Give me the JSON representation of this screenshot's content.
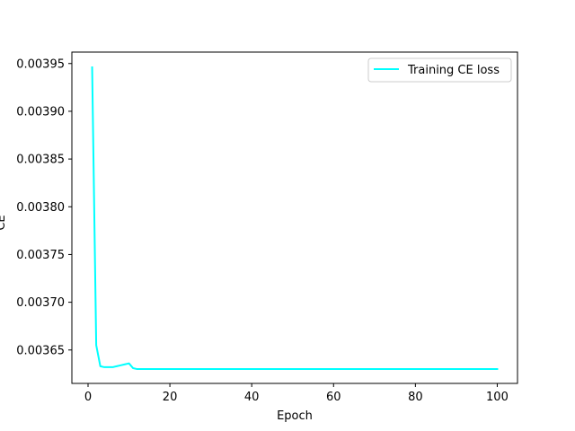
{
  "chart_data": {
    "type": "line",
    "title": "",
    "xlabel": "Epoch",
    "ylabel": "CE",
    "xlim": [
      -3.95,
      104.95
    ],
    "ylim": [
      0.003615,
      0.003962
    ],
    "xticks": [
      0,
      20,
      40,
      60,
      80,
      100
    ],
    "yticks": [
      0.00365,
      0.0037,
      0.00375,
      0.0038,
      0.00385,
      0.0039,
      0.00395
    ],
    "xtick_labels": [
      "0",
      "20",
      "40",
      "60",
      "80",
      "100"
    ],
    "ytick_labels": [
      "0.00365",
      "0.00370",
      "0.00375",
      "0.00380",
      "0.00385",
      "0.00390",
      "0.00395"
    ],
    "grid": false,
    "legend_position": "top-right",
    "series": [
      {
        "name": "Training CE loss",
        "color": "#00ffff",
        "x": [
          1,
          2,
          3,
          4,
          5,
          6,
          7,
          8,
          9,
          10,
          11,
          12,
          14,
          16,
          18,
          20,
          22,
          25,
          30,
          40,
          50,
          60,
          70,
          80,
          90,
          100
        ],
        "y": [
          0.003946,
          0.003655,
          0.003633,
          0.003632,
          0.003632,
          0.003632,
          0.003633,
          0.003634,
          0.003635,
          0.003636,
          0.003631,
          0.00363,
          0.00363,
          0.00363,
          0.00363,
          0.00363,
          0.00363,
          0.00363,
          0.00363,
          0.00363,
          0.00363,
          0.00363,
          0.00363,
          0.00363,
          0.00363,
          0.00363
        ]
      }
    ]
  }
}
